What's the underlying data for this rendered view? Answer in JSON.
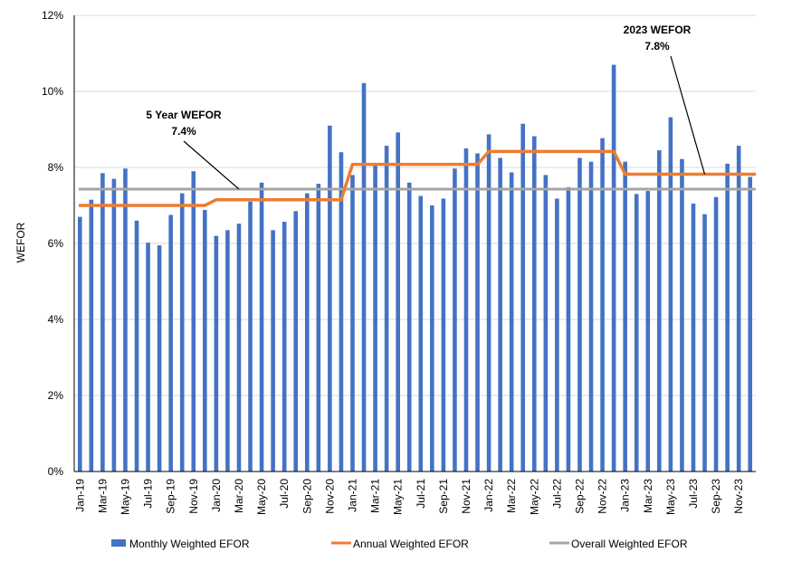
{
  "chart_data": {
    "type": "bar",
    "ylabel": "WEFOR",
    "xlabel": "",
    "ylim": [
      0,
      12
    ],
    "yticks": [
      0,
      2,
      4,
      6,
      8,
      10,
      12
    ],
    "y_tick_labels": [
      "0%",
      "2%",
      "4%",
      "6%",
      "8%",
      "10%",
      "12%"
    ],
    "grid": true,
    "legend_position": "bottom",
    "categories": [
      "Jan-19",
      "Feb-19",
      "Mar-19",
      "Apr-19",
      "May-19",
      "Jun-19",
      "Jul-19",
      "Aug-19",
      "Sep-19",
      "Oct-19",
      "Nov-19",
      "Dec-19",
      "Jan-20",
      "Feb-20",
      "Mar-20",
      "Apr-20",
      "May-20",
      "Jun-20",
      "Jul-20",
      "Aug-20",
      "Sep-20",
      "Oct-20",
      "Nov-20",
      "Dec-20",
      "Jan-21",
      "Feb-21",
      "Mar-21",
      "Apr-21",
      "May-21",
      "Jun-21",
      "Jul-21",
      "Aug-21",
      "Sep-21",
      "Oct-21",
      "Nov-21",
      "Dec-21",
      "Jan-22",
      "Feb-22",
      "Mar-22",
      "Apr-22",
      "May-22",
      "Jun-22",
      "Jul-22",
      "Aug-22",
      "Sep-22",
      "Oct-22",
      "Nov-22",
      "Dec-22",
      "Jan-23",
      "Feb-23",
      "Mar-23",
      "Apr-23",
      "May-23",
      "Jun-23",
      "Jul-23",
      "Aug-23",
      "Sep-23",
      "Oct-23",
      "Nov-23",
      "Dec-23"
    ],
    "x_tick_labels": [
      "Jan-19",
      "Mar-19",
      "May-19",
      "Jul-19",
      "Sep-19",
      "Nov-19",
      "Jan-20",
      "Mar-20",
      "May-20",
      "Jul-20",
      "Sep-20",
      "Nov-20",
      "Jan-21",
      "Mar-21",
      "May-21",
      "Jul-21",
      "Sep-21",
      "Nov-21",
      "Jan-22",
      "Mar-22",
      "May-22",
      "Jul-22",
      "Sep-22",
      "Nov-22",
      "Jan-23",
      "Mar-23",
      "May-23",
      "Jul-23",
      "Sep-23",
      "Nov-23"
    ],
    "series": [
      {
        "name": "Monthly Weighted EFOR",
        "type": "bar",
        "color": "#4472C4",
        "values": [
          6.7,
          7.15,
          7.85,
          7.7,
          7.97,
          6.6,
          6.02,
          5.95,
          6.75,
          7.32,
          7.9,
          6.88,
          6.2,
          6.35,
          6.52,
          7.1,
          7.6,
          6.35,
          6.57,
          6.85,
          7.32,
          7.57,
          9.1,
          8.4,
          7.8,
          10.22,
          8.08,
          8.57,
          8.92,
          7.6,
          7.25,
          7.0,
          7.18,
          7.97,
          8.5,
          8.37,
          8.87,
          8.25,
          7.87,
          9.15,
          8.82,
          7.8,
          7.18,
          7.48,
          8.25,
          8.15,
          8.77,
          10.7,
          8.15,
          7.3,
          7.38,
          8.45,
          9.32,
          8.22,
          7.05,
          6.77,
          7.22,
          8.1,
          8.57,
          7.75
        ]
      },
      {
        "name": "Annual Weighted EFOR",
        "type": "line",
        "color": "#ED7D31",
        "values": [
          7.0,
          7.0,
          7.0,
          7.0,
          7.0,
          7.0,
          7.0,
          7.0,
          7.0,
          7.0,
          7.0,
          7.0,
          7.15,
          7.15,
          7.15,
          7.15,
          7.15,
          7.15,
          7.15,
          7.15,
          7.15,
          7.15,
          7.15,
          7.15,
          8.08,
          8.08,
          8.08,
          8.08,
          8.08,
          8.08,
          8.08,
          8.08,
          8.08,
          8.08,
          8.08,
          8.08,
          8.42,
          8.42,
          8.42,
          8.42,
          8.42,
          8.42,
          8.42,
          8.42,
          8.42,
          8.42,
          8.42,
          8.42,
          7.82,
          7.82,
          7.82,
          7.82,
          7.82,
          7.82,
          7.82,
          7.82,
          7.82,
          7.82,
          7.82,
          7.82
        ]
      },
      {
        "name": "Overall Weighted EFOR",
        "type": "line",
        "color": "#A5A5A5",
        "values": [
          7.43,
          7.43,
          7.43,
          7.43,
          7.43,
          7.43,
          7.43,
          7.43,
          7.43,
          7.43,
          7.43,
          7.43,
          7.43,
          7.43,
          7.43,
          7.43,
          7.43,
          7.43,
          7.43,
          7.43,
          7.43,
          7.43,
          7.43,
          7.43,
          7.43,
          7.43,
          7.43,
          7.43,
          7.43,
          7.43,
          7.43,
          7.43,
          7.43,
          7.43,
          7.43,
          7.43,
          7.43,
          7.43,
          7.43,
          7.43,
          7.43,
          7.43,
          7.43,
          7.43,
          7.43,
          7.43,
          7.43,
          7.43,
          7.43,
          7.43,
          7.43,
          7.43,
          7.43,
          7.43,
          7.43,
          7.43,
          7.43,
          7.43,
          7.43,
          7.43
        ]
      }
    ],
    "annotations": [
      {
        "line1": "5 Year WEFOR",
        "line2": "7.4%",
        "arrow_to_index": 14,
        "arrow_to_value": 7.43
      },
      {
        "line1": "2023 WEFOR",
        "line2": "7.8%",
        "arrow_to_index": 55,
        "arrow_to_value": 7.82
      }
    ]
  }
}
